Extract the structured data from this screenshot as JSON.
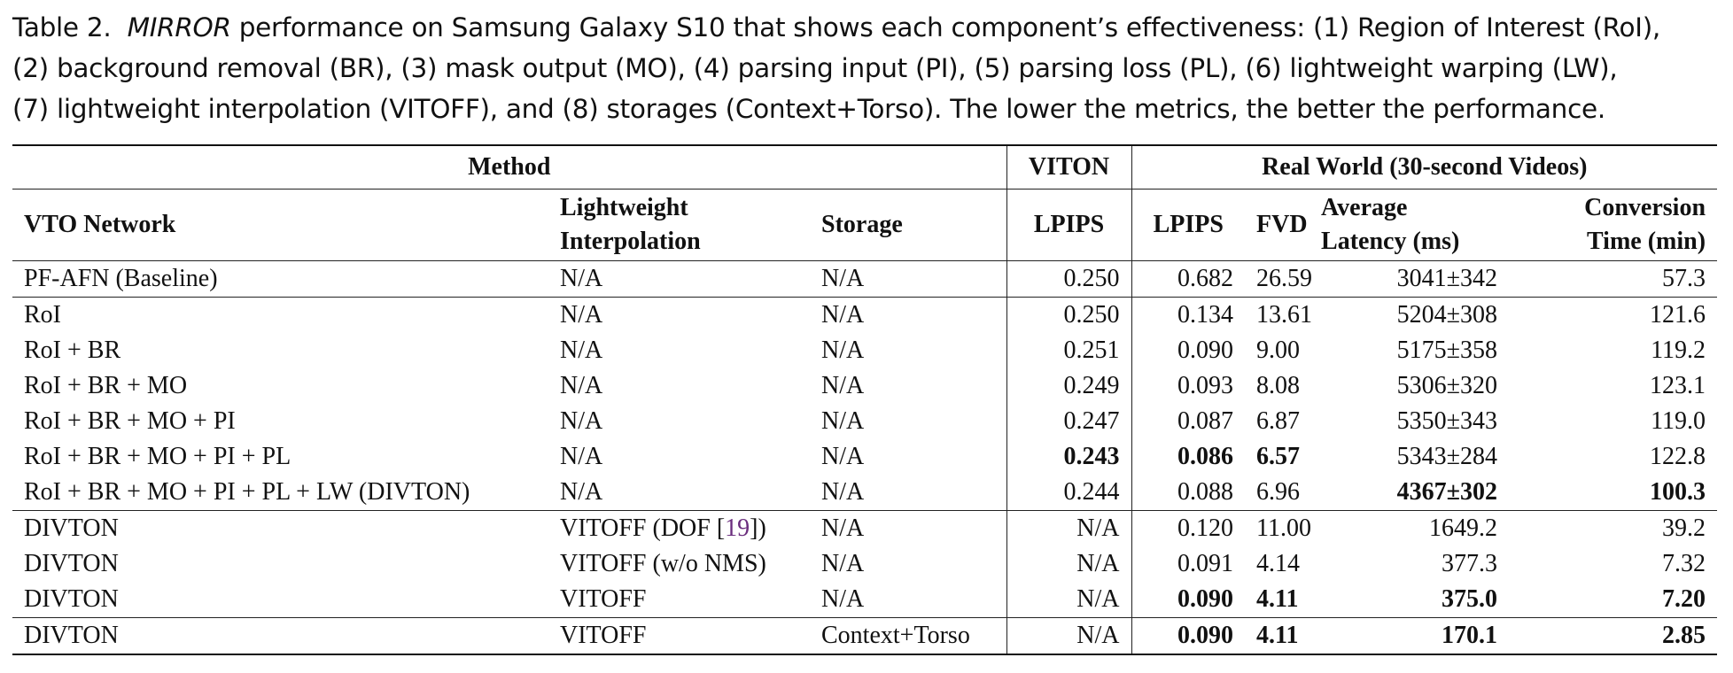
{
  "caption": {
    "label": "Table 2.",
    "system": "MIRROR",
    "line1_rest": " performance on Samsung Galaxy S10 that shows each component’s effectiveness: (1) Region of Interest (RoI),",
    "line2": "(2) background removal (BR), (3) mask output (MO), (4) parsing input (PI), (5) parsing loss (PL), (6) lightweight warping (LW),",
    "line3": "(7) lightweight interpolation (VITOFF), and (8) storages (Context+Torso). The lower the metrics, the better the performance."
  },
  "header": {
    "group_method": "Method",
    "group_viton": "VITON",
    "group_real": "Real World (30-second Videos)",
    "col_vto": "VTO Network",
    "col_interp_1": "Lightweight",
    "col_interp_2": "Interpolation",
    "col_storage": "Storage",
    "col_viton_lpips": "LPIPS",
    "col_rw_lpips": "LPIPS",
    "col_fvd": "FVD",
    "col_latency_1": "Average",
    "col_latency_2": "Latency (ms)",
    "col_conv_1": "Conversion",
    "col_conv_2": "Time (min)"
  },
  "rows": [
    {
      "net": "PF-AFN (Baseline)",
      "interp": "N/A",
      "storage": "N/A",
      "viton_lpips": "0.250",
      "rw_lpips": "0.682",
      "fvd": "26.59",
      "latency": "3041±342",
      "conv": "57.3"
    },
    {
      "net": "RoI",
      "interp": "N/A",
      "storage": "N/A",
      "viton_lpips": "0.250",
      "rw_lpips": "0.134",
      "fvd": "13.61",
      "latency": "5204±308",
      "conv": "121.6"
    },
    {
      "net": "RoI + BR",
      "interp": "N/A",
      "storage": "N/A",
      "viton_lpips": "0.251",
      "rw_lpips": "0.090",
      "fvd": "9.00",
      "latency": "5175±358",
      "conv": "119.2"
    },
    {
      "net": "RoI + BR + MO",
      "interp": "N/A",
      "storage": "N/A",
      "viton_lpips": "0.249",
      "rw_lpips": "0.093",
      "fvd": "8.08",
      "latency": "5306±320",
      "conv": "123.1"
    },
    {
      "net": "RoI + BR + MO + PI",
      "interp": "N/A",
      "storage": "N/A",
      "viton_lpips": "0.247",
      "rw_lpips": "0.087",
      "fvd": "6.87",
      "latency": "5350±343",
      "conv": "119.0"
    },
    {
      "net": "RoI + BR + MO + PI + PL",
      "interp": "N/A",
      "storage": "N/A",
      "viton_lpips": "0.243",
      "rw_lpips": "0.086",
      "fvd": "6.57",
      "latency": "5343±284",
      "conv": "122.8"
    },
    {
      "net": "RoI + BR + MO + PI + PL + LW (DIVTON)",
      "interp": "N/A",
      "storage": "N/A",
      "viton_lpips": "0.244",
      "rw_lpips": "0.088",
      "fvd": "6.96",
      "latency": "4367±302",
      "conv": "100.3"
    },
    {
      "net": "DIVTON",
      "interp_pre": "VITOFF (DOF [",
      "interp_ref": "19",
      "interp_post": "])",
      "storage": "N/A",
      "viton_lpips": "N/A",
      "rw_lpips": "0.120",
      "fvd": "11.00",
      "latency": "1649.2",
      "conv": "39.2"
    },
    {
      "net": "DIVTON",
      "interp": "VITOFF (w/o NMS)",
      "storage": "N/A",
      "viton_lpips": "N/A",
      "rw_lpips": "0.091",
      "fvd": "4.14",
      "latency": "377.3",
      "conv": "7.32"
    },
    {
      "net": "DIVTON",
      "interp": "VITOFF",
      "storage": "N/A",
      "viton_lpips": "N/A",
      "rw_lpips": "0.090",
      "fvd": "4.11",
      "latency": "375.0",
      "conv": "7.20"
    },
    {
      "net": "DIVTON",
      "interp": "VITOFF",
      "storage": "Context+Torso",
      "viton_lpips": "N/A",
      "rw_lpips": "0.090",
      "fvd": "4.11",
      "latency": "170.1",
      "conv": "2.85"
    }
  ]
}
